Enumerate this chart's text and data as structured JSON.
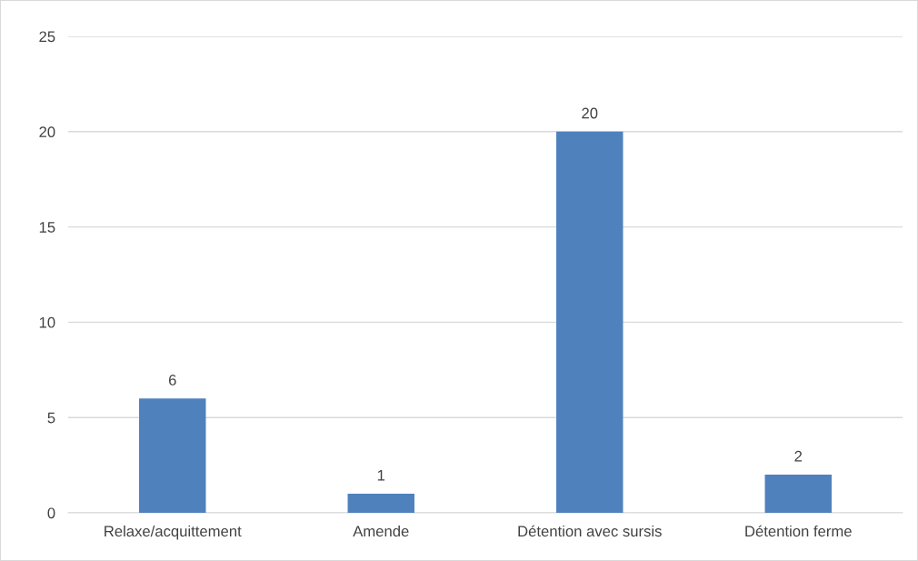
{
  "chart_data": {
    "type": "bar",
    "categories": [
      "Relaxe/acquittement",
      "Amende",
      "Détention avec sursis",
      "Détention ferme"
    ],
    "values": [
      6,
      1,
      20,
      2
    ],
    "color": "#4f81bd",
    "ylim": [
      0,
      25
    ],
    "yticks": [
      0,
      5,
      10,
      15,
      20,
      25
    ],
    "grid": "y",
    "data_labels": true
  }
}
